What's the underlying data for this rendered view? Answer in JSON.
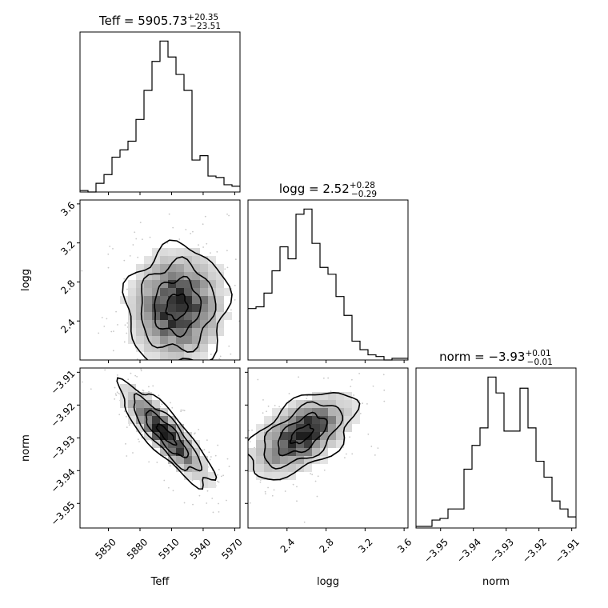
{
  "chart_data": {
    "type": "corner",
    "parameters": [
      "Teff",
      "logg",
      "norm"
    ],
    "panel_titles": [
      {
        "param": "Teff",
        "prefix": "Teff = ",
        "value": "5905.73",
        "plus": "+20.35",
        "minus": "−23.51"
      },
      {
        "param": "logg",
        "prefix": "logg = ",
        "value": "2.52",
        "plus": "+0.28",
        "minus": "−0.29"
      },
      {
        "param": "norm",
        "prefix": "norm = ",
        "value": "−3.93",
        "plus": "+0.01",
        "minus": "−0.01"
      }
    ],
    "axes": {
      "Teff": {
        "label": "Teff",
        "range": [
          5823,
          5975
        ],
        "ticks": [
          5850,
          5880,
          5910,
          5940,
          5970
        ],
        "tick_labels": [
          "5850",
          "5880",
          "5910",
          "5940",
          "5970"
        ]
      },
      "logg": {
        "label": "logg",
        "range": [
          2.0,
          3.64
        ],
        "ticks": [
          2.4,
          2.8,
          3.2,
          3.6
        ],
        "tick_labels": [
          "2.4",
          "2.8",
          "3.2",
          "3.6"
        ]
      },
      "norm": {
        "label": "norm",
        "range": [
          -3.9575,
          -3.9087
        ],
        "ticks": [
          -3.95,
          -3.94,
          -3.93,
          -3.92,
          -3.91
        ],
        "tick_labels": [
          "−3.95",
          "−3.94",
          "−3.93",
          "−3.92",
          "−3.91"
        ]
      }
    },
    "histograms": {
      "Teff": {
        "bin_edges": [
          5823,
          5830.6,
          5838.2,
          5845.8,
          5853.4,
          5861,
          5868.6,
          5876.2,
          5883.8,
          5891.4,
          5899,
          5906.6,
          5914.2,
          5921.8,
          5929.4,
          5937,
          5944.6,
          5952.2,
          5959.8,
          5967.4,
          5975
        ],
        "counts": [
          1,
          0,
          6,
          12,
          24,
          29,
          35,
          50,
          70,
          90,
          104,
          93,
          81,
          70,
          22,
          25,
          11,
          10,
          5,
          4
        ]
      },
      "logg": {
        "bin_edges": [
          2.0,
          2.082,
          2.164,
          2.246,
          2.328,
          2.41,
          2.492,
          2.574,
          2.656,
          2.738,
          2.82,
          2.902,
          2.984,
          3.066,
          3.148,
          3.23,
          3.312,
          3.394,
          3.476,
          3.558,
          3.64
        ],
        "counts": [
          30,
          31,
          39,
          52,
          66,
          59,
          85,
          88,
          68,
          54,
          50,
          37,
          26,
          11,
          6,
          3,
          2,
          0,
          1,
          1
        ]
      },
      "norm": {
        "bin_edges": [
          -3.9575,
          -3.95506,
          -3.95262,
          -3.95018,
          -3.94774,
          -3.9453,
          -3.94286,
          -3.94042,
          -3.93798,
          -3.93554,
          -3.9331,
          -3.93066,
          -3.92822,
          -3.92578,
          -3.92334,
          -3.9209,
          -3.91846,
          -3.91602,
          -3.91358,
          -3.91114,
          -3.9087
        ],
        "counts": [
          1,
          1,
          5,
          6,
          12,
          12,
          37,
          52,
          63,
          95,
          85,
          61,
          61,
          88,
          63,
          42,
          32,
          17,
          12,
          7
        ]
      }
    },
    "joint": [
      {
        "x": "Teff",
        "y": "logg",
        "peak": [
          5915,
          2.55
        ],
        "sigma": [
          22,
          0.28
        ],
        "rho": 0.05
      },
      {
        "x": "Teff",
        "y": "norm",
        "peak": [
          5905,
          -3.929
        ],
        "sigma": [
          20,
          0.007
        ],
        "rho": -0.85
      },
      {
        "x": "logg",
        "y": "norm",
        "peak": [
          2.55,
          -3.929
        ],
        "sigma": [
          0.25,
          0.006
        ],
        "rho": 0.55
      }
    ]
  }
}
